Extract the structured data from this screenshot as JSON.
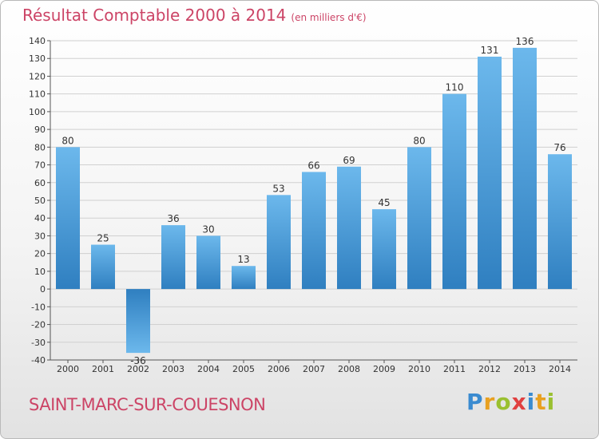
{
  "chart_data": {
    "type": "bar",
    "title": "Résultat Comptable 2000 à 2014",
    "subtitle": "(en milliers d'€)",
    "categories": [
      "2000",
      "2001",
      "2002",
      "2003",
      "2004",
      "2005",
      "2006",
      "2007",
      "2008",
      "2009",
      "2010",
      "2011",
      "2012",
      "2013",
      "2014"
    ],
    "values": [
      80,
      25,
      -36,
      36,
      30,
      13,
      53,
      66,
      69,
      45,
      80,
      110,
      131,
      136,
      76
    ],
    "ylim": [
      -40,
      140
    ],
    "yticks": [
      -40,
      -30,
      -20,
      -10,
      0,
      10,
      20,
      30,
      40,
      50,
      60,
      70,
      80,
      90,
      100,
      110,
      120,
      130,
      140
    ],
    "xlabel": "",
    "ylabel": "",
    "grid": true,
    "bar_color": "#4a9edb"
  },
  "commune": "SAINT-MARC-SUR-COUESNON",
  "logo": {
    "text": "Proxiti"
  },
  "colors": {
    "title": "#cc4466",
    "grid": "#d0d0d0"
  }
}
